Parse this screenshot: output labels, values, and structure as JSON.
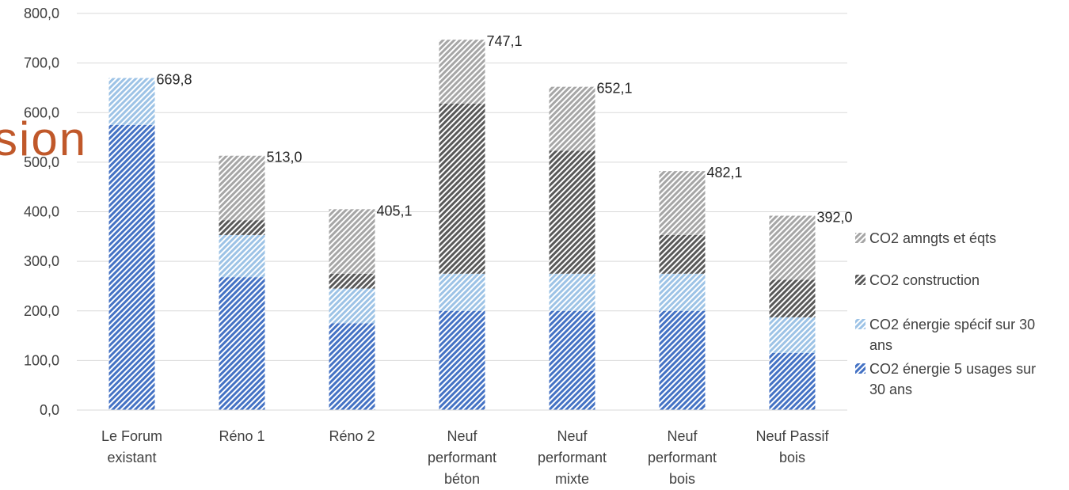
{
  "watermark": "sion",
  "chart_data": {
    "type": "bar",
    "stacked": true,
    "categories": [
      [
        "Le Forum",
        "existant"
      ],
      [
        "Réno 1"
      ],
      [
        "Réno 2"
      ],
      [
        "Neuf",
        "performant",
        "béton"
      ],
      [
        "Neuf",
        "performant",
        "mixte"
      ],
      [
        "Neuf",
        "performant",
        "bois"
      ],
      [
        "Neuf Passif",
        "bois"
      ]
    ],
    "series": [
      {
        "name": "CO2 énergie 5 usages sur 30 ans",
        "legend_lines": [
          "CO2 énergie 5 usages sur",
          "30 ans"
        ],
        "color": "#4472c4",
        "values": [
          575,
          268,
          175,
          200,
          200,
          200,
          115
        ]
      },
      {
        "name": "CO2 énergie spécif sur 30 ans",
        "legend_lines": [
          "CO2 énergie spécif sur 30",
          "ans"
        ],
        "color": "#9dc3e6",
        "values": [
          94.8,
          85,
          70,
          75,
          75,
          75,
          72
        ]
      },
      {
        "name": "CO2 construction",
        "legend_lines": [
          "CO2 construction"
        ],
        "color": "#595959",
        "values": [
          0,
          30,
          30,
          343,
          248,
          78,
          76
        ]
      },
      {
        "name": "CO2 amngts et éqts",
        "legend_lines": [
          "CO2 amngts et éqts"
        ],
        "color": "#a6a6a6",
        "values": [
          0,
          130,
          130.1,
          129.1,
          129.1,
          129.1,
          129
        ]
      }
    ],
    "totals": [
      "669,8",
      "513,0",
      "405,1",
      "747,1",
      "652,1",
      "482,1",
      "392,0"
    ],
    "ylim": [
      0,
      800
    ],
    "yticks": [
      "0,0",
      "100,0",
      "200,0",
      "300,0",
      "400,0",
      "500,0",
      "600,0",
      "700,0",
      "800,0"
    ],
    "grid": true,
    "legend_position": "right",
    "legend_order": [
      3,
      2,
      1,
      0
    ]
  }
}
